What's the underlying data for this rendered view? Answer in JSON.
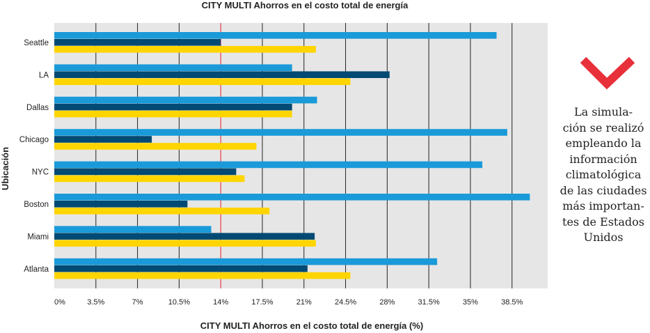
{
  "chart_data": {
    "type": "bar",
    "orientation": "horizontal",
    "title": "CITY MULTI Ahorros en el costo total de energía",
    "xlabel": "CITY MULTI Ahorros en el costo total de energía (%)",
    "ylabel": "Ubicación",
    "categories": [
      "Seattle",
      "LA",
      "Dallas",
      "Chicago",
      "NYC",
      "Boston",
      "Miami",
      "Atlanta"
    ],
    "series": [
      {
        "color": "#1a9ad8",
        "values": [
          37.2,
          20.0,
          22.1,
          38.1,
          36.0,
          40.0,
          13.2,
          32.2
        ]
      },
      {
        "color": "#004a73",
        "values": [
          14.0,
          28.2,
          20.0,
          8.2,
          15.3,
          11.2,
          21.9,
          21.3
        ]
      },
      {
        "color": "#ffd500",
        "values": [
          22.0,
          24.9,
          20.0,
          17.0,
          16.0,
          18.1,
          22.0,
          24.9
        ]
      }
    ],
    "x_ticks": [
      "0%",
      "3.5%",
      "7%",
      "10.5%",
      "14%",
      "17.5%",
      "21%",
      "24.5%",
      "28%",
      "31.5%",
      "35%",
      "38.5%"
    ],
    "x_tick_values": [
      0,
      3.5,
      7,
      10.5,
      14,
      17.5,
      21,
      24.5,
      28,
      31.5,
      35,
      38.5
    ],
    "xlim": [
      0,
      41.5
    ],
    "highlight_tick": 14,
    "highlight_color": "#e8202a",
    "grid": true,
    "background_color": "#e6e6e6"
  },
  "side_note": {
    "lines": [
      "La simula-",
      "ción se realizó",
      "empleando la",
      "información",
      "climatológica",
      "de las ciudades",
      "más importan-",
      "tes de Estados",
      "Unidos"
    ],
    "icon": "checkmark-icon",
    "icon_color": "#e8303a"
  }
}
